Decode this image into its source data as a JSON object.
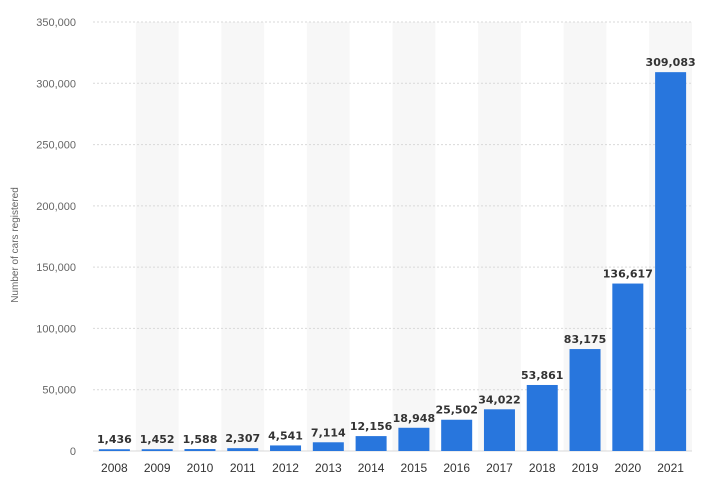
{
  "chart_data": {
    "type": "bar",
    "title": "",
    "xlabel": "",
    "ylabel": "Number of cars registered",
    "categories": [
      "2008",
      "2009",
      "2010",
      "2011",
      "2012",
      "2013",
      "2014",
      "2015",
      "2016",
      "2017",
      "2018",
      "2019",
      "2020",
      "2021"
    ],
    "values": [
      1436,
      1452,
      1588,
      2307,
      4541,
      7114,
      12156,
      18948,
      25502,
      34022,
      53861,
      83175,
      136617,
      309083
    ],
    "data_labels": [
      "1,436",
      "1,452",
      "1,588",
      "2,307",
      "4,541",
      "7,114",
      "12,156",
      "18,948",
      "25,502",
      "34,022",
      "53,861",
      "83,175",
      "136,617",
      "309,083"
    ],
    "y_ticks": [
      0,
      50000,
      100000,
      150000,
      200000,
      250000,
      300000,
      350000
    ],
    "y_tick_labels": [
      "0",
      "50,000",
      "100,000",
      "150,000",
      "200,000",
      "250,000",
      "300,000",
      "350,000"
    ],
    "ylim": [
      0,
      350000
    ],
    "grid": true,
    "legend": "none",
    "colors": {
      "bar": "#2876dd",
      "grid": "#d9d9d9",
      "band": "#f7f7f7"
    }
  }
}
